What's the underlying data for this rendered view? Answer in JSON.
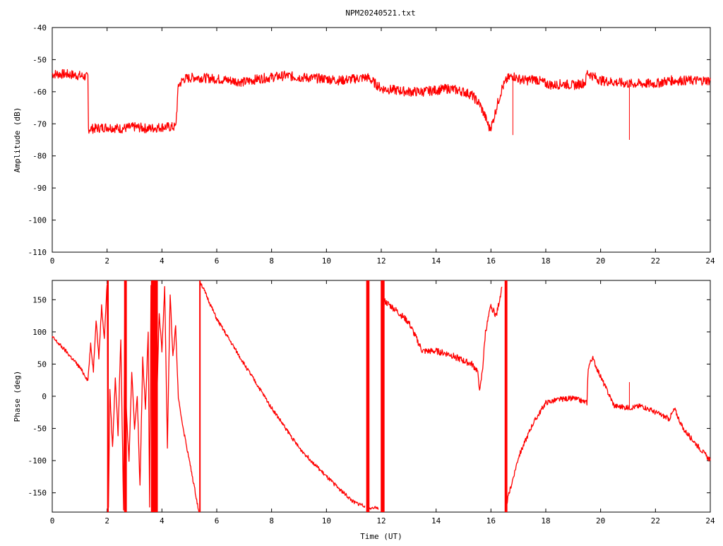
{
  "chart_data": [
    {
      "type": "line",
      "title": "NPM20240521.txt",
      "xlabel": "",
      "ylabel": "Amplitude (dB)",
      "xlim": [
        0,
        24
      ],
      "ylim": [
        -110,
        -40
      ],
      "xticks": [
        0,
        2,
        4,
        6,
        8,
        10,
        12,
        14,
        16,
        18,
        20,
        22,
        24
      ],
      "yticks": [
        -110,
        -100,
        -90,
        -80,
        -70,
        -60,
        -50,
        -40
      ],
      "color": "#ff0000",
      "series": [
        {
          "band": 1.5,
          "x": [
            0,
            0.5,
            1.0,
            1.3,
            1.32,
            1.5,
            2.0,
            2.5,
            3.0,
            3.5,
            4.0,
            4.5,
            4.55,
            4.6,
            4.8,
            5.2,
            6.0,
            6.5,
            7.0,
            7.5,
            8.0,
            8.5,
            9.0,
            10.0,
            10.5,
            11.0,
            11.5,
            12.0,
            12.5,
            13.0,
            13.5,
            14.0,
            14.5,
            15.0,
            15.3,
            15.6,
            15.8,
            15.95,
            16.05,
            16.2,
            16.4,
            16.6,
            16.8,
            17.0,
            17.3,
            17.6,
            18.0,
            18.3,
            18.6,
            19.0,
            19.3,
            19.45,
            19.5,
            19.7,
            20.0,
            20.5,
            21.0,
            21.5,
            22.0,
            22.5,
            23.0,
            23.5,
            24.0
          ],
          "y": [
            -54.5,
            -54.5,
            -55,
            -55.5,
            -71.5,
            -71.5,
            -71,
            -71.5,
            -71,
            -71.5,
            -71,
            -71,
            -65,
            -58,
            -56,
            -55.5,
            -56,
            -56.5,
            -57,
            -56,
            -55.5,
            -55,
            -55.5,
            -56,
            -56.5,
            -56,
            -55.5,
            -59,
            -59.5,
            -60,
            -60,
            -59.5,
            -59,
            -60,
            -61,
            -64,
            -68,
            -71.5,
            -70,
            -65,
            -59,
            -56,
            -55,
            -56,
            -56.5,
            -56,
            -57.5,
            -58,
            -57.5,
            -58,
            -57.5,
            -57,
            -54,
            -55,
            -56.5,
            -57,
            -57.5,
            -57.5,
            -57.5,
            -56.5,
            -56.5,
            -56.5,
            -56.5
          ]
        }
      ],
      "spikes": [
        {
          "x": 16.8,
          "y": -73.5
        },
        {
          "x": 21.05,
          "y": -75
        }
      ]
    },
    {
      "type": "line",
      "title": "",
      "xlabel": "Time (UT)",
      "ylabel": "Phase (deg)",
      "xlim": [
        0,
        24
      ],
      "ylim": [
        -180,
        180
      ],
      "xticks": [
        0,
        2,
        4,
        6,
        8,
        10,
        12,
        14,
        16,
        18,
        20,
        22,
        24
      ],
      "yticks": [
        -150,
        -100,
        -50,
        0,
        50,
        100,
        150
      ],
      "color": "#ff0000",
      "series": [
        {
          "band": 3,
          "x": [
            0,
            0.5,
            1.0,
            1.3,
            1.4,
            1.5,
            1.6,
            1.7,
            1.8,
            1.9,
            2.0,
            2.05,
            2.1,
            2.2,
            2.3,
            2.4,
            2.5,
            2.6,
            2.65,
            2.7,
            2.8,
            2.9,
            3.0,
            3.1,
            3.2,
            3.3,
            3.4,
            3.5,
            3.55,
            3.6,
            3.7,
            3.75,
            3.8,
            3.9,
            4.0,
            4.1,
            4.2,
            4.3,
            4.4,
            4.5,
            4.6,
            4.8,
            5.0,
            5.2,
            5.35
          ],
          "y": [
            92,
            70,
            45,
            25,
            80,
            40,
            120,
            60,
            140,
            90,
            175,
            -175,
            10,
            -80,
            30,
            -60,
            90,
            -175,
            175,
            -20,
            -100,
            40,
            -50,
            0,
            -140,
            60,
            -20,
            100,
            -175,
            175,
            -100,
            80,
            -30,
            130,
            70,
            170,
            -80,
            160,
            60,
            110,
            -5,
            -55,
            -100,
            -145,
            -180
          ]
        },
        {
          "band": 3,
          "x": [
            5.4,
            6.0,
            7.0,
            8.0,
            9.0,
            10.0,
            10.5,
            11.0,
            11.4
          ],
          "y": [
            178,
            120,
            50,
            -18,
            -80,
            -125,
            -145,
            -165,
            -170
          ]
        },
        {
          "band": 3,
          "x": [
            11.5,
            11.9
          ],
          "y": [
            -172,
            -175
          ]
        },
        {
          "band": 5,
          "x": [
            12.05,
            12.5,
            13.0,
            13.5,
            14.0,
            14.5,
            15.0,
            15.3,
            15.5,
            15.6,
            15.7,
            15.8,
            16.0,
            16.2,
            16.4
          ],
          "y": [
            150,
            135,
            115,
            70,
            70,
            65,
            55,
            50,
            40,
            8,
            45,
            100,
            140,
            125,
            170
          ]
        },
        {
          "band": 4,
          "x": [
            16.55,
            17.0,
            17.5,
            18.0,
            18.5,
            19.0,
            19.5,
            19.55,
            19.7,
            20.0,
            20.5,
            21.0,
            21.5,
            22.0,
            22.5,
            22.7,
            23.0,
            23.5,
            24.0
          ],
          "y": [
            -170,
            -95,
            -45,
            -10,
            -5,
            -3,
            -10,
            45,
            60,
            30,
            -15,
            -18,
            -15,
            -25,
            -35,
            -20,
            -50,
            -75,
            -100
          ]
        }
      ],
      "wrap_bars": [
        {
          "x": 11.45,
          "width": 0.12
        },
        {
          "x": 11.98,
          "width": 0.14
        },
        {
          "x": 16.5,
          "width": 0.1
        },
        {
          "x": 5.36,
          "width": 0.05
        },
        {
          "x": 3.6,
          "width": 0.25
        },
        {
          "x": 2.0,
          "width": 0.06
        },
        {
          "x": 2.62,
          "width": 0.1
        }
      ],
      "spikes": [
        {
          "x": 21.05,
          "y": 22
        }
      ]
    }
  ]
}
